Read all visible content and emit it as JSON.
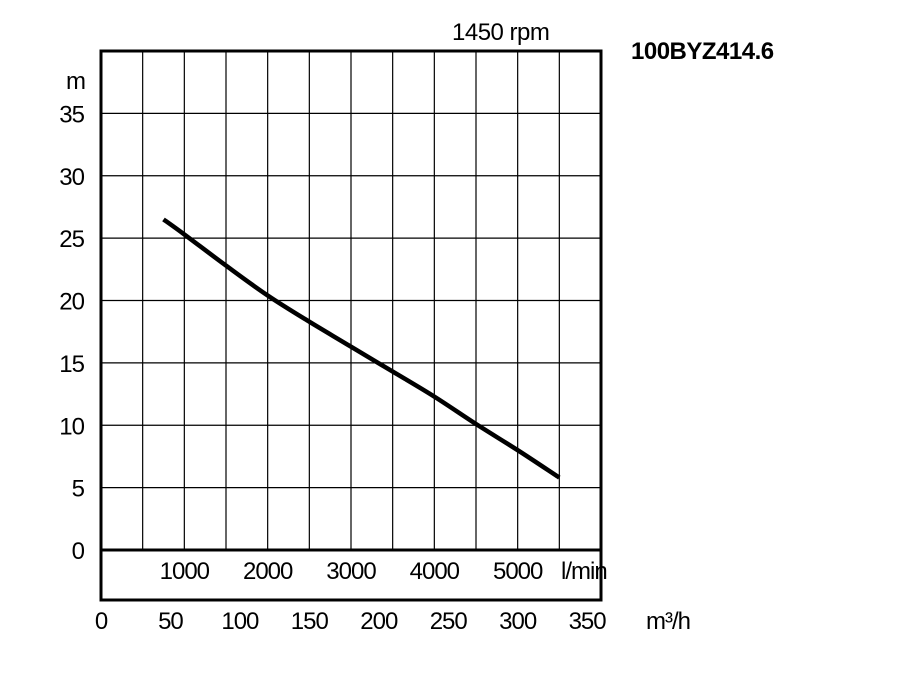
{
  "chart_data": {
    "type": "line",
    "title": "100BYZ414.6",
    "subtitle": "1450 rpm",
    "ylabel": "m",
    "x_unit_flow": "m³/h",
    "x_unit_lmin": "l/min",
    "xlim": [
      0,
      360
    ],
    "ylim": [
      0,
      40
    ],
    "x_ticks": [
      0,
      50,
      100,
      150,
      200,
      250,
      300,
      350
    ],
    "y_ticks": [
      0,
      5,
      10,
      15,
      20,
      25,
      30,
      35
    ],
    "lmin_ticks": [
      {
        "label": "1000",
        "m3h": 60
      },
      {
        "label": "2000",
        "m3h": 120
      },
      {
        "label": "3000",
        "m3h": 180
      },
      {
        "label": "4000",
        "m3h": 240
      },
      {
        "label": "5000",
        "m3h": 300
      }
    ],
    "grid": true,
    "series": [
      {
        "x": [
          45,
          60,
          90,
          120,
          150,
          180,
          210,
          240,
          270,
          300,
          330
        ],
        "y": [
          26.5,
          25.3,
          22.8,
          20.4,
          18.3,
          16.3,
          14.3,
          12.3,
          10.1,
          8.0,
          5.8
        ]
      }
    ]
  }
}
